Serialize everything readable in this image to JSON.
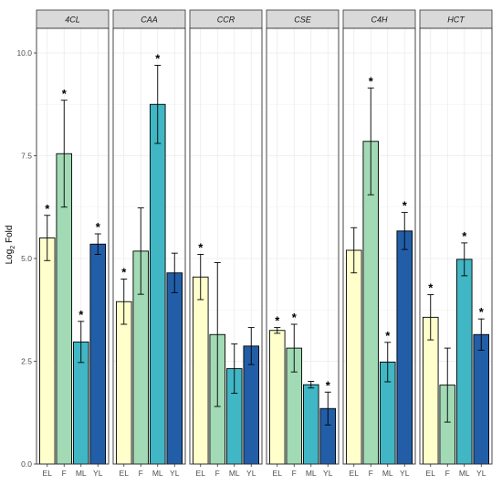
{
  "chart_data": {
    "type": "bar",
    "ylabel_main": "Log",
    "ylabel_sub": "2",
    "ylabel_tail": " Fold",
    "ylim": [
      0,
      10.6
    ],
    "yticks": [
      0.0,
      2.5,
      5.0,
      7.5,
      10.0
    ],
    "ytick_labels": [
      "0.0",
      "2.5",
      "5.0",
      "7.5",
      "10.0"
    ],
    "categories": [
      "EL",
      "F",
      "ML",
      "YL"
    ],
    "colors": [
      "#ffffcc",
      "#a1dab4",
      "#41b6c4",
      "#225ea8"
    ],
    "grid": true,
    "significance_symbol": "*",
    "panels": [
      {
        "name": "4CL",
        "values": [
          5.5,
          7.55,
          2.97,
          5.35
        ],
        "errors": [
          0.55,
          1.3,
          0.5,
          0.25
        ],
        "significant": [
          true,
          true,
          true,
          true
        ]
      },
      {
        "name": "CAA",
        "values": [
          3.95,
          5.18,
          8.75,
          4.65
        ],
        "errors": [
          0.55,
          1.05,
          0.95,
          0.48
        ],
        "significant": [
          true,
          false,
          true,
          false
        ]
      },
      {
        "name": "CCR",
        "values": [
          4.55,
          3.15,
          2.32,
          2.87
        ],
        "errors": [
          0.55,
          1.75,
          0.6,
          0.45
        ],
        "significant": [
          true,
          false,
          false,
          false
        ]
      },
      {
        "name": "CSE",
        "values": [
          3.25,
          2.82,
          1.93,
          1.35
        ],
        "errors": [
          0.07,
          0.58,
          0.08,
          0.4
        ],
        "significant": [
          true,
          true,
          false,
          true
        ]
      },
      {
        "name": "C4H",
        "values": [
          5.2,
          7.85,
          2.48,
          5.67
        ],
        "errors": [
          0.55,
          1.3,
          0.48,
          0.45
        ],
        "significant": [
          false,
          true,
          true,
          true
        ]
      },
      {
        "name": "HCT",
        "values": [
          3.57,
          1.92,
          4.98,
          3.15
        ],
        "errors": [
          0.55,
          0.9,
          0.4,
          0.38
        ],
        "significant": [
          true,
          false,
          true,
          true
        ]
      }
    ]
  }
}
